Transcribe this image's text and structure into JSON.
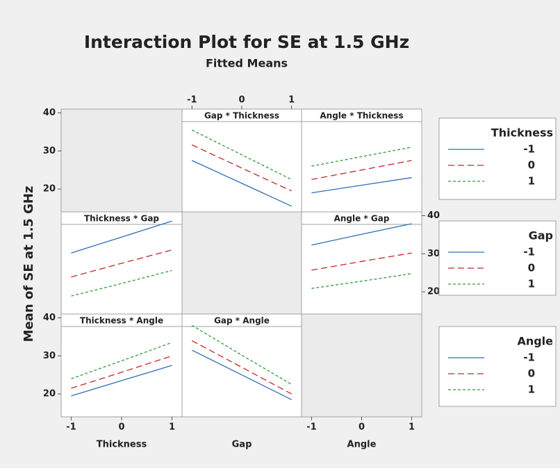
{
  "chart_data": {
    "type": "line",
    "title": "Interaction Plot for SE at 1.5 GHz",
    "subtitle": "Fitted Means",
    "ylabel": "Mean of SE at 1.5 GHz",
    "factors": [
      "Thickness",
      "Gap",
      "Angle"
    ],
    "x": [
      -1,
      0,
      1
    ],
    "xlim": [
      -1.2,
      1.2
    ],
    "xticks": [
      -1,
      0,
      1
    ],
    "ylim": [
      14,
      41
    ],
    "yticks": [
      20,
      30,
      40
    ],
    "levels": [
      {
        "name": "-1",
        "color": "#2f6db5",
        "dash": "none"
      },
      {
        "name": "0",
        "color": "#c0282d",
        "dash": "9 5"
      },
      {
        "name": "1",
        "color": "#2e9a3a",
        "dash": "4 3"
      }
    ],
    "panels": [
      {
        "title": "Gap * Thickness",
        "values": [
          [
            27.5,
            21.5,
            15.5
          ],
          [
            31.6,
            25.5,
            19.5
          ],
          [
            35.5,
            29,
            22.5
          ]
        ]
      },
      {
        "title": "Angle * Thickness",
        "values": [
          [
            19,
            21,
            23
          ],
          [
            22.5,
            25,
            27.5
          ],
          [
            26,
            28.5,
            31
          ]
        ]
      },
      {
        "title": "Thickness * Gap",
        "values": [
          [
            30.2,
            34.4,
            38.6
          ],
          [
            23.9,
            27.5,
            31
          ],
          [
            18.9,
            22.2,
            25.6
          ]
        ]
      },
      {
        "title": "Angle * Gap",
        "values": [
          [
            32.3,
            35.1,
            37.9
          ],
          [
            25.7,
            28,
            30.2
          ],
          [
            20.9,
            22.8,
            24.8
          ]
        ]
      },
      {
        "title": "Thickness * Angle",
        "values": [
          [
            19.5,
            23.5,
            27.5
          ],
          [
            21.5,
            25.7,
            30
          ],
          [
            24,
            28.7,
            33.5
          ]
        ]
      },
      {
        "title": "Gap * Angle",
        "values": [
          [
            31.5,
            25,
            18.5
          ],
          [
            34,
            27,
            20
          ],
          [
            38,
            30.2,
            22.5
          ]
        ]
      }
    ]
  }
}
